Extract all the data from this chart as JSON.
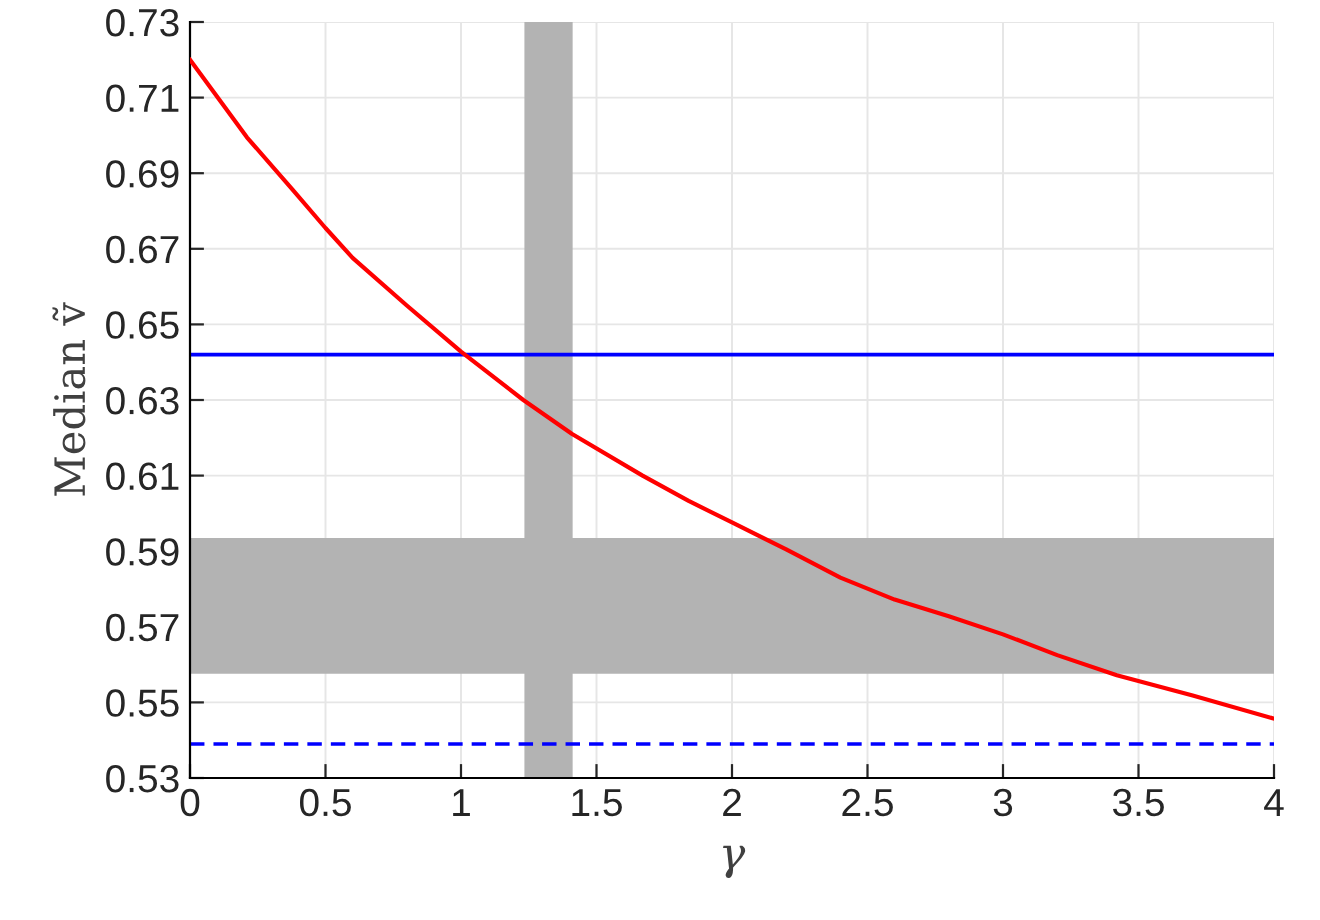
{
  "chart_data": {
    "type": "line",
    "xlabel": "γ",
    "ylabel": "Median ṽ",
    "xlim": [
      0,
      4
    ],
    "xticks": [
      0,
      0.5,
      1,
      1.5,
      2,
      2.5,
      3,
      3.5,
      4
    ],
    "ylim": [
      0.53,
      0.73
    ],
    "yticks": [
      0.53,
      0.55,
      0.57,
      0.59,
      0.61,
      0.63,
      0.65,
      0.67,
      0.69,
      0.71,
      0.73
    ],
    "grid": true,
    "marker": "none",
    "line_style": "solid",
    "series": [
      {
        "color": "#ff0000",
        "x": [
          0,
          0.21,
          0.38,
          0.5,
          0.6,
          0.8,
          1.0,
          1.23,
          1.41,
          1.67,
          1.84,
          2.0,
          2.2,
          2.4,
          2.6,
          2.8,
          3.0,
          3.2,
          3.42,
          3.7,
          4.0
        ],
        "values": [
          0.72,
          0.6995,
          0.6855,
          0.6755,
          0.6676,
          0.655,
          0.6428,
          0.63,
          0.621,
          0.61,
          0.6033,
          0.5976,
          0.5905,
          0.583,
          0.5772,
          0.5728,
          0.568,
          0.5625,
          0.5572,
          0.5518,
          0.5457
        ]
      }
    ],
    "ref_lines": [
      {
        "axis": "y",
        "value": 0.642,
        "color": "#0000ff",
        "line_style": "solid"
      },
      {
        "axis": "y",
        "value": 0.539,
        "color": "#0000ff",
        "line_style": "dashed"
      }
    ],
    "bands": [
      {
        "axis": "x",
        "from": 1.234,
        "to": 1.412,
        "color": "#b3b3b3"
      },
      {
        "axis": "y",
        "from": 0.5576,
        "to": 0.5935,
        "color": "#b3b3b3"
      }
    ]
  }
}
